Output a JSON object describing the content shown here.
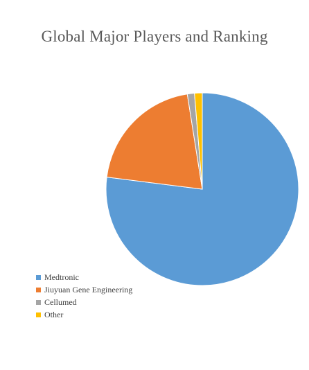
{
  "chart_data": {
    "type": "pie",
    "title": "Global Major Players and Ranking",
    "categories": [
      "Medtronic",
      "Jiuyuan Gene Engineering",
      "Cellumed",
      "Other"
    ],
    "values": [
      77,
      20.5,
      1.2,
      1.3
    ],
    "colors": [
      "#5B9BD5",
      "#ED7D31",
      "#A5A5A5",
      "#FFC000"
    ],
    "start_angle_deg": 0,
    "direction": "clockwise",
    "legend_position": "left-bottom"
  }
}
